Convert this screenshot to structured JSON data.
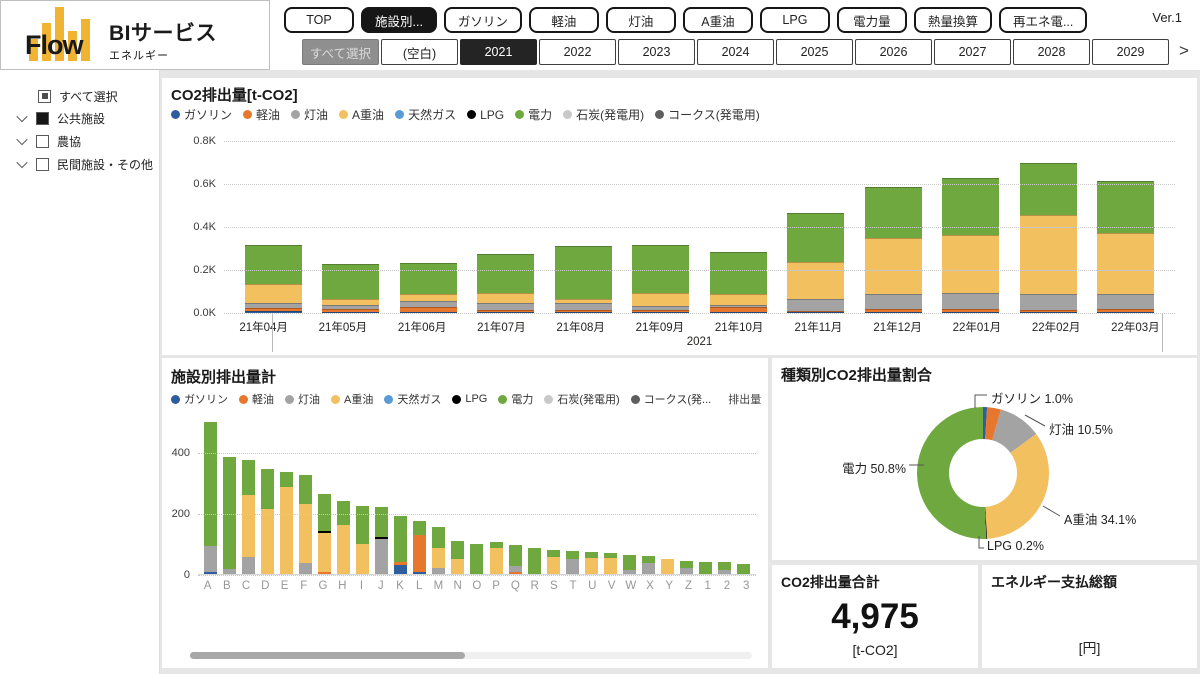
{
  "header": {
    "logo": {
      "flow": "Flow",
      "service": "BIサービス",
      "sub": "エネルギー"
    },
    "version": "Ver.1",
    "nav_buttons": [
      {
        "label": "TOP",
        "selected": false
      },
      {
        "label": "施設別...",
        "selected": true
      },
      {
        "label": "ガソリン",
        "selected": false
      },
      {
        "label": "軽油",
        "selected": false
      },
      {
        "label": "灯油",
        "selected": false
      },
      {
        "label": "A重油",
        "selected": false
      },
      {
        "label": "LPG",
        "selected": false
      },
      {
        "label": "電力量",
        "selected": false
      },
      {
        "label": "熱量換算",
        "selected": false
      },
      {
        "label": "再エネ電...",
        "selected": false
      }
    ],
    "year_filter": {
      "chips": [
        {
          "label": "すべて選択",
          "variant": "all"
        },
        {
          "label": "(空白)",
          "variant": "normal"
        },
        {
          "label": "2021",
          "variant": "selected"
        },
        {
          "label": "2022",
          "variant": "normal"
        },
        {
          "label": "2023",
          "variant": "normal"
        },
        {
          "label": "2024",
          "variant": "normal"
        },
        {
          "label": "2025",
          "variant": "normal"
        },
        {
          "label": "2026",
          "variant": "normal"
        },
        {
          "label": "2027",
          "variant": "normal"
        },
        {
          "label": "2028",
          "variant": "normal"
        },
        {
          "label": "2029",
          "variant": "normal"
        }
      ],
      "scroll_icon": ">"
    }
  },
  "sidebar": {
    "items": [
      {
        "label": "すべて選択",
        "checkbox": "partial",
        "chevron": false
      },
      {
        "label": "公共施設",
        "checkbox": "checked",
        "chevron": true
      },
      {
        "label": "農協",
        "checkbox": "unchecked",
        "chevron": true
      },
      {
        "label": "民間施設・その他",
        "checkbox": "unchecked",
        "chevron": true
      }
    ]
  },
  "colors": {
    "gasoline": "#2E5E9E",
    "diesel": "#E8772E",
    "kerosene": "#A3A3A3",
    "heavy_oil_a": "#F2C05F",
    "natural_gas": "#5B9BD5",
    "lpg": "#000000",
    "electricity": "#6FA83F",
    "coal": "#C9C9C9",
    "coke": "#5E5E5E"
  },
  "chart_data": [
    {
      "type": "bar",
      "title": "CO2排出量[t-CO2]",
      "legend": [
        {
          "label": "ガソリン",
          "color_key": "gasoline"
        },
        {
          "label": "軽油",
          "color_key": "diesel"
        },
        {
          "label": "灯油",
          "color_key": "kerosene"
        },
        {
          "label": "A重油",
          "color_key": "heavy_oil_a"
        },
        {
          "label": "天然ガス",
          "color_key": "natural_gas"
        },
        {
          "label": "LPG",
          "color_key": "lpg"
        },
        {
          "label": "電力",
          "color_key": "electricity"
        },
        {
          "label": "石炭(発電用)",
          "color_key": "coal"
        },
        {
          "label": "コークス(発電用)",
          "color_key": "coke"
        }
      ],
      "categories": [
        "21年04月",
        "21年05月",
        "21年06月",
        "21年07月",
        "21年08月",
        "21年09月",
        "21年10月",
        "21年11月",
        "21年12月",
        "22年01月",
        "22年02月",
        "22年03月"
      ],
      "x_group_label": "2021",
      "ylim": [
        0,
        800
      ],
      "yticks": [
        "0.0K",
        "0.2K",
        "0.4K",
        "0.6K",
        "0.8K"
      ],
      "series": [
        {
          "name": "ガソリン",
          "color_key": "gasoline",
          "values": [
            8,
            5,
            4,
            4,
            5,
            5,
            5,
            5,
            4,
            4,
            4,
            4
          ]
        },
        {
          "name": "軽油",
          "color_key": "diesel",
          "values": [
            14,
            13,
            23,
            11,
            10,
            7,
            22,
            5,
            14,
            14,
            11,
            14
          ]
        },
        {
          "name": "灯油",
          "color_key": "kerosene",
          "values": [
            23,
            18,
            28,
            30,
            34,
            23,
            9,
            57,
            71,
            76,
            75,
            71
          ]
        },
        {
          "name": "A重油",
          "color_key": "heavy_oil_a",
          "values": [
            90,
            31,
            35,
            49,
            18,
            59,
            53,
            170,
            260,
            268,
            366,
            282
          ]
        },
        {
          "name": "電力",
          "color_key": "electricity",
          "values": [
            180,
            161,
            142,
            179,
            246,
            223,
            197,
            228,
            237,
            264,
            242,
            242
          ]
        }
      ]
    },
    {
      "type": "bar",
      "title": "施設別排出量計",
      "legend": [
        {
          "label": "ガソリン",
          "color_key": "gasoline"
        },
        {
          "label": "軽油",
          "color_key": "diesel"
        },
        {
          "label": "灯油",
          "color_key": "kerosene"
        },
        {
          "label": "A重油",
          "color_key": "heavy_oil_a"
        },
        {
          "label": "天然ガス",
          "color_key": "natural_gas"
        },
        {
          "label": "LPG",
          "color_key": "lpg"
        },
        {
          "label": "電力",
          "color_key": "electricity"
        },
        {
          "label": "石炭(発電用)",
          "color_key": "coal"
        },
        {
          "label": "コークス(発...",
          "color_key": "coke"
        }
      ],
      "legend_extra": "排出量合計[t-...",
      "ylim": [
        0,
        520
      ],
      "yticks": [
        "0",
        "200",
        "400"
      ],
      "bars": [
        {
          "label": "A",
          "segs": [
            [
              "gasoline",
              8
            ],
            [
              "kerosene",
              84
            ],
            [
              "electricity",
              408
            ]
          ]
        },
        {
          "label": "B",
          "segs": [
            [
              "kerosene",
              18
            ],
            [
              "electricity",
              367
            ]
          ]
        },
        {
          "label": "C",
          "segs": [
            [
              "kerosene",
              55
            ],
            [
              "heavy_oil_a",
              205
            ],
            [
              "electricity",
              115
            ]
          ]
        },
        {
          "label": "D",
          "segs": [
            [
              "heavy_oil_a",
              215
            ],
            [
              "electricity",
              130
            ]
          ]
        },
        {
          "label": "E",
          "segs": [
            [
              "heavy_oil_a",
              285
            ],
            [
              "electricity",
              50
            ]
          ]
        },
        {
          "label": "F",
          "segs": [
            [
              "kerosene",
              35
            ],
            [
              "heavy_oil_a",
              195
            ],
            [
              "electricity",
              95
            ]
          ]
        },
        {
          "label": "G",
          "segs": [
            [
              "diesel",
              8
            ],
            [
              "heavy_oil_a",
              127
            ],
            [
              "lpg",
              5
            ],
            [
              "electricity",
              125
            ]
          ]
        },
        {
          "label": "H",
          "segs": [
            [
              "heavy_oil_a",
              160
            ],
            [
              "electricity",
              80
            ]
          ]
        },
        {
          "label": "I",
          "segs": [
            [
              "heavy_oil_a",
              100
            ],
            [
              "electricity",
              125
            ]
          ]
        },
        {
          "label": "J",
          "segs": [
            [
              "kerosene",
              115
            ],
            [
              "lpg",
              7
            ],
            [
              "electricity",
              98
            ]
          ]
        },
        {
          "label": "K",
          "segs": [
            [
              "gasoline",
              30
            ],
            [
              "diesel",
              10
            ],
            [
              "electricity",
              150
            ]
          ]
        },
        {
          "label": "L",
          "segs": [
            [
              "gasoline",
              5
            ],
            [
              "diesel",
              125
            ],
            [
              "electricity",
              45
            ]
          ]
        },
        {
          "label": "M",
          "segs": [
            [
              "kerosene",
              20
            ],
            [
              "heavy_oil_a",
              65
            ],
            [
              "electricity",
              70
            ]
          ]
        },
        {
          "label": "N",
          "segs": [
            [
              "heavy_oil_a",
              50
            ],
            [
              "electricity",
              60
            ]
          ]
        },
        {
          "label": "O",
          "segs": [
            [
              "electricity",
              98
            ]
          ]
        },
        {
          "label": "P",
          "segs": [
            [
              "heavy_oil_a",
              85
            ],
            [
              "electricity",
              20
            ]
          ]
        },
        {
          "label": "Q",
          "segs": [
            [
              "diesel",
              5
            ],
            [
              "kerosene",
              23
            ],
            [
              "electricity",
              67
            ]
          ]
        },
        {
          "label": "R",
          "segs": [
            [
              "electricity",
              85
            ]
          ]
        },
        {
          "label": "S",
          "segs": [
            [
              "heavy_oil_a",
              55
            ],
            [
              "electricity",
              23
            ]
          ]
        },
        {
          "label": "T",
          "segs": [
            [
              "kerosene",
              50
            ],
            [
              "electricity",
              25
            ]
          ]
        },
        {
          "label": "U",
          "segs": [
            [
              "heavy_oil_a",
              52
            ],
            [
              "electricity",
              20
            ]
          ]
        },
        {
          "label": "V",
          "segs": [
            [
              "heavy_oil_a",
              52
            ],
            [
              "electricity",
              16
            ]
          ]
        },
        {
          "label": "W",
          "segs": [
            [
              "kerosene",
              12
            ],
            [
              "electricity",
              50
            ]
          ]
        },
        {
          "label": "X",
          "segs": [
            [
              "kerosene",
              35
            ],
            [
              "electricity",
              25
            ]
          ]
        },
        {
          "label": "Y",
          "segs": [
            [
              "heavy_oil_a",
              48
            ]
          ]
        },
        {
          "label": "Z",
          "segs": [
            [
              "kerosene",
              20
            ],
            [
              "electricity",
              22
            ]
          ]
        },
        {
          "label": "1",
          "segs": [
            [
              "electricity",
              38
            ]
          ]
        },
        {
          "label": "2",
          "segs": [
            [
              "kerosene",
              12
            ],
            [
              "electricity",
              26
            ]
          ]
        },
        {
          "label": "3",
          "segs": [
            [
              "electricity",
              33
            ]
          ]
        }
      ]
    },
    {
      "type": "pie",
      "title": "種類別CO2排出量割合",
      "slices": [
        {
          "name": "ガソリン",
          "pct": 1.0,
          "color_key": "gasoline",
          "label": "ガソリン 1.0%"
        },
        {
          "name": "軽油",
          "pct": 3.4,
          "color_key": "diesel",
          "label": null
        },
        {
          "name": "灯油",
          "pct": 10.5,
          "color_key": "kerosene",
          "label": "灯油 10.5%"
        },
        {
          "name": "A重油",
          "pct": 34.1,
          "color_key": "heavy_oil_a",
          "label": "A重油 34.1%"
        },
        {
          "name": "LPG",
          "pct": 0.2,
          "color_key": "lpg",
          "label": "LPG 0.2%"
        },
        {
          "name": "電力",
          "pct": 50.8,
          "color_key": "electricity",
          "label": "電力 50.8%"
        }
      ]
    }
  ],
  "cards": [
    {
      "title": "CO2排出量合計",
      "value": "4,975",
      "unit": "[t-CO2]"
    },
    {
      "title": "エネルギー支払総額",
      "value": "",
      "unit": "[円]"
    }
  ]
}
